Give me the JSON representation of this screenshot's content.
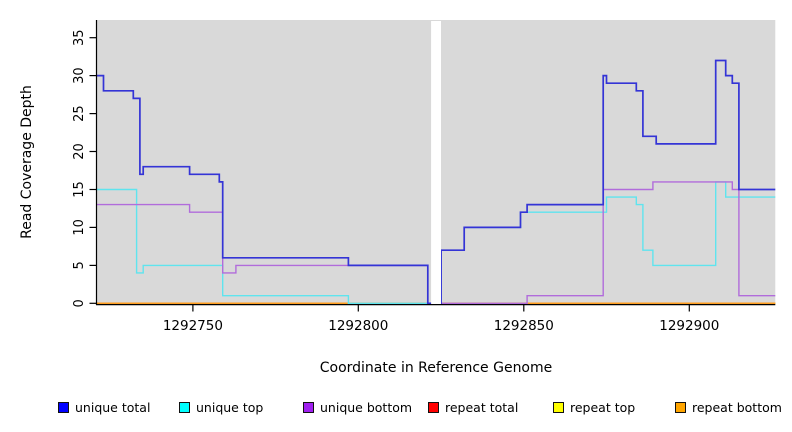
{
  "chart_data": {
    "type": "line",
    "step": true,
    "title": "",
    "xlabel": "Coordinate in Reference Genome",
    "ylabel": "Read Coverage Depth",
    "xlim": [
      1292721,
      1292926
    ],
    "ylim": [
      0,
      35
    ],
    "x_ticks": [
      1292750,
      1292800,
      1292850,
      1292900
    ],
    "y_ticks": [
      0,
      5,
      10,
      15,
      20,
      25,
      30,
      35
    ],
    "grid": false,
    "panel_bg": "#D9D9D9",
    "gap_x": [
      1292822,
      1292825
    ],
    "legend_position": "bottom",
    "draw_order": [
      3,
      4,
      5,
      1,
      2,
      0
    ],
    "series": [
      {
        "name": "unique total",
        "legend_color": "#0000FF",
        "line_color": "#3434D6",
        "line_width": 1.7,
        "steps": [
          [
            1292721,
            30
          ],
          [
            1292723,
            28
          ],
          [
            1292732,
            27
          ],
          [
            1292734,
            17
          ],
          [
            1292735,
            18
          ],
          [
            1292749,
            17
          ],
          [
            1292758,
            16
          ],
          [
            1292759,
            6
          ],
          [
            1292797,
            5
          ],
          [
            1292821,
            0
          ],
          [
            1292825,
            7
          ],
          [
            1292832,
            10
          ],
          [
            1292849,
            12
          ],
          [
            1292851,
            13
          ],
          [
            1292874,
            30
          ],
          [
            1292875,
            29
          ],
          [
            1292884,
            28
          ],
          [
            1292886,
            22
          ],
          [
            1292890,
            21
          ],
          [
            1292908,
            32
          ],
          [
            1292911,
            30
          ],
          [
            1292913,
            29
          ],
          [
            1292915,
            15
          ]
        ]
      },
      {
        "name": "unique top",
        "legend_color": "#00FFFF",
        "line_color": "#5FE4EE",
        "line_width": 1.4,
        "steps": [
          [
            1292721,
            15
          ],
          [
            1292733,
            4
          ],
          [
            1292735,
            5
          ],
          [
            1292759,
            1
          ],
          [
            1292797,
            0
          ],
          [
            1292825,
            7
          ],
          [
            1292832,
            10
          ],
          [
            1292849,
            12
          ],
          [
            1292875,
            14
          ],
          [
            1292884,
            13
          ],
          [
            1292886,
            7
          ],
          [
            1292889,
            5
          ],
          [
            1292908,
            16
          ],
          [
            1292911,
            14
          ]
        ]
      },
      {
        "name": "unique bottom",
        "legend_color": "#A020F0",
        "line_color": "#B16CDB",
        "line_width": 1.4,
        "steps": [
          [
            1292721,
            13
          ],
          [
            1292749,
            12
          ],
          [
            1292759,
            4
          ],
          [
            1292763,
            5
          ],
          [
            1292821,
            0
          ],
          [
            1292851,
            1
          ],
          [
            1292874,
            15
          ],
          [
            1292889,
            16
          ],
          [
            1292913,
            15
          ],
          [
            1292915,
            1
          ]
        ]
      },
      {
        "name": "repeat total",
        "legend_color": "#FF0000",
        "line_color": "#E03A3A",
        "line_width": 1.4,
        "steps": [
          [
            1292721,
            0
          ]
        ]
      },
      {
        "name": "repeat top",
        "legend_color": "#FFFF00",
        "line_color": "#FFFF00",
        "line_width": 1.4,
        "steps": [
          [
            1292721,
            0
          ]
        ]
      },
      {
        "name": "repeat bottom",
        "legend_color": "#FFA500",
        "line_color": "#FF9D1E",
        "line_width": 1.6,
        "steps": [
          [
            1292721,
            0
          ]
        ]
      }
    ]
  }
}
